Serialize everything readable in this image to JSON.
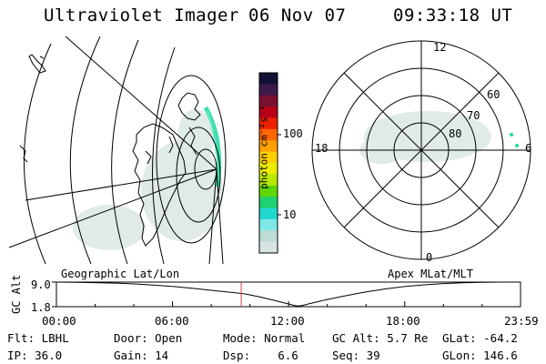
{
  "header": {
    "title": "Ultraviolet Imager",
    "date": "06 Nov 07",
    "time": "09:33:18 UT"
  },
  "colorbar": {
    "unit_label": "photon cm⁻²s⁻¹",
    "ticks": [
      "100",
      "10"
    ],
    "colors": [
      "#111133",
      "#3a1a4a",
      "#7a1030",
      "#b80018",
      "#ee2200",
      "#ff6600",
      "#ffa000",
      "#ffd000",
      "#ecec00",
      "#b8e800",
      "#60d800",
      "#20d070",
      "#20d8d0",
      "#80e8e8",
      "#bcdcd8",
      "#d8e4e4"
    ]
  },
  "polar": {
    "mlt_labels": [
      "12",
      "18",
      "6",
      "0"
    ],
    "lat_labels": [
      "60",
      "70",
      "80"
    ]
  },
  "map": {
    "label": "Geographic Lat/Lon"
  },
  "apex_label": "Apex MLat/MLT",
  "altitude_plot": {
    "ylabel": "GC Alt",
    "ytick_top": "9.0",
    "ytick_bottom": "1.8",
    "xticks": [
      "00:00",
      "06:00",
      "12:00",
      "18:00",
      "23:59"
    ]
  },
  "status": {
    "flt": "Flt: LBHL",
    "ip": "IP: 36.0",
    "door": "Door: Open",
    "gain": "Gain: 14",
    "mode": "Mode: Normal",
    "dsp": "Dsp:    6.6",
    "gc_alt": "GC Alt: 5.7 Re",
    "seq": "Seq: 39",
    "glat": "GLat: -64.2",
    "glon": "GLon: 146.6"
  },
  "chart_data": {
    "type": "line",
    "title": "",
    "xlabel": "",
    "ylabel": "GC Alt",
    "x": [
      "00:00",
      "02:00",
      "04:00",
      "06:00",
      "08:00",
      "09:33",
      "10:00",
      "11:00",
      "12:00",
      "12:30",
      "13:00",
      "14:00",
      "16:00",
      "18:00",
      "20:00",
      "22:00",
      "23:59"
    ],
    "series": [
      {
        "values": [
          9.0,
          8.9,
          8.5,
          7.8,
          6.6,
          5.7,
          5.3,
          4.0,
          2.6,
          1.8,
          2.6,
          3.9,
          6.2,
          7.8,
          8.6,
          9.0,
          9.0
        ]
      }
    ],
    "ylim": [
      1.8,
      9.0
    ],
    "current_time_marker": "09:33"
  }
}
